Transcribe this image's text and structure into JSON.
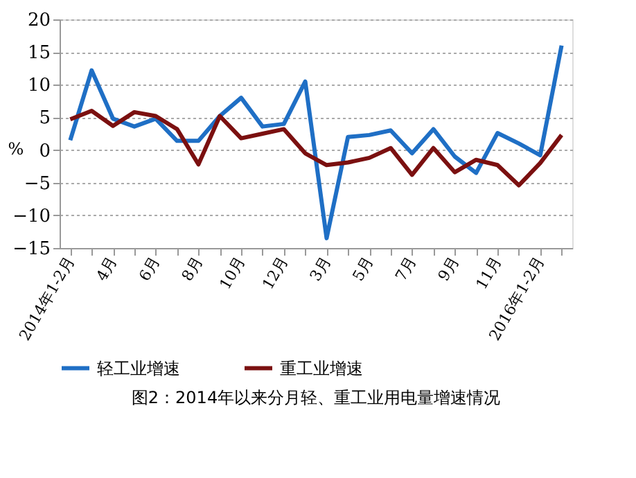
{
  "chart_data": {
    "type": "line",
    "title": "图2：2014年以来分月轻、重工业用电量增速情况",
    "ylabel": "%",
    "categories": [
      "2014年1-2月",
      null,
      "4月",
      null,
      "6月",
      null,
      "8月",
      null,
      "10月",
      null,
      "12月",
      null,
      "3月",
      null,
      "5月",
      null,
      "7月",
      null,
      "9月",
      null,
      "11月",
      null,
      "2016年1-2月",
      null
    ],
    "series": [
      {
        "name": "轻工业增速",
        "color": "#1f6fc5",
        "values": [
          1.5,
          12.2,
          4.8,
          3.6,
          4.8,
          1.4,
          1.4,
          5.2,
          8.0,
          3.6,
          4.0,
          10.5,
          -13.5,
          2.0,
          2.3,
          3.0,
          -0.5,
          3.2,
          -1.0,
          -3.5,
          2.6,
          1.0,
          -0.8,
          16.0
        ]
      },
      {
        "name": "重工业增速",
        "color": "#7b1010",
        "values": [
          4.7,
          6.0,
          3.7,
          5.8,
          5.2,
          3.2,
          -2.2,
          5.2,
          1.8,
          2.5,
          3.2,
          -0.5,
          -2.3,
          -1.9,
          -1.2,
          0.3,
          -3.8,
          0.3,
          -3.4,
          -1.5,
          -2.3,
          -5.4,
          -2.0,
          2.3
        ]
      }
    ],
    "ylim": [
      -15,
      20
    ],
    "yticks": [
      -15,
      -10,
      -5,
      0,
      5,
      10,
      15,
      20
    ],
    "grid": "y",
    "legend": "bottom",
    "marker": "none",
    "line_style": "solid"
  }
}
